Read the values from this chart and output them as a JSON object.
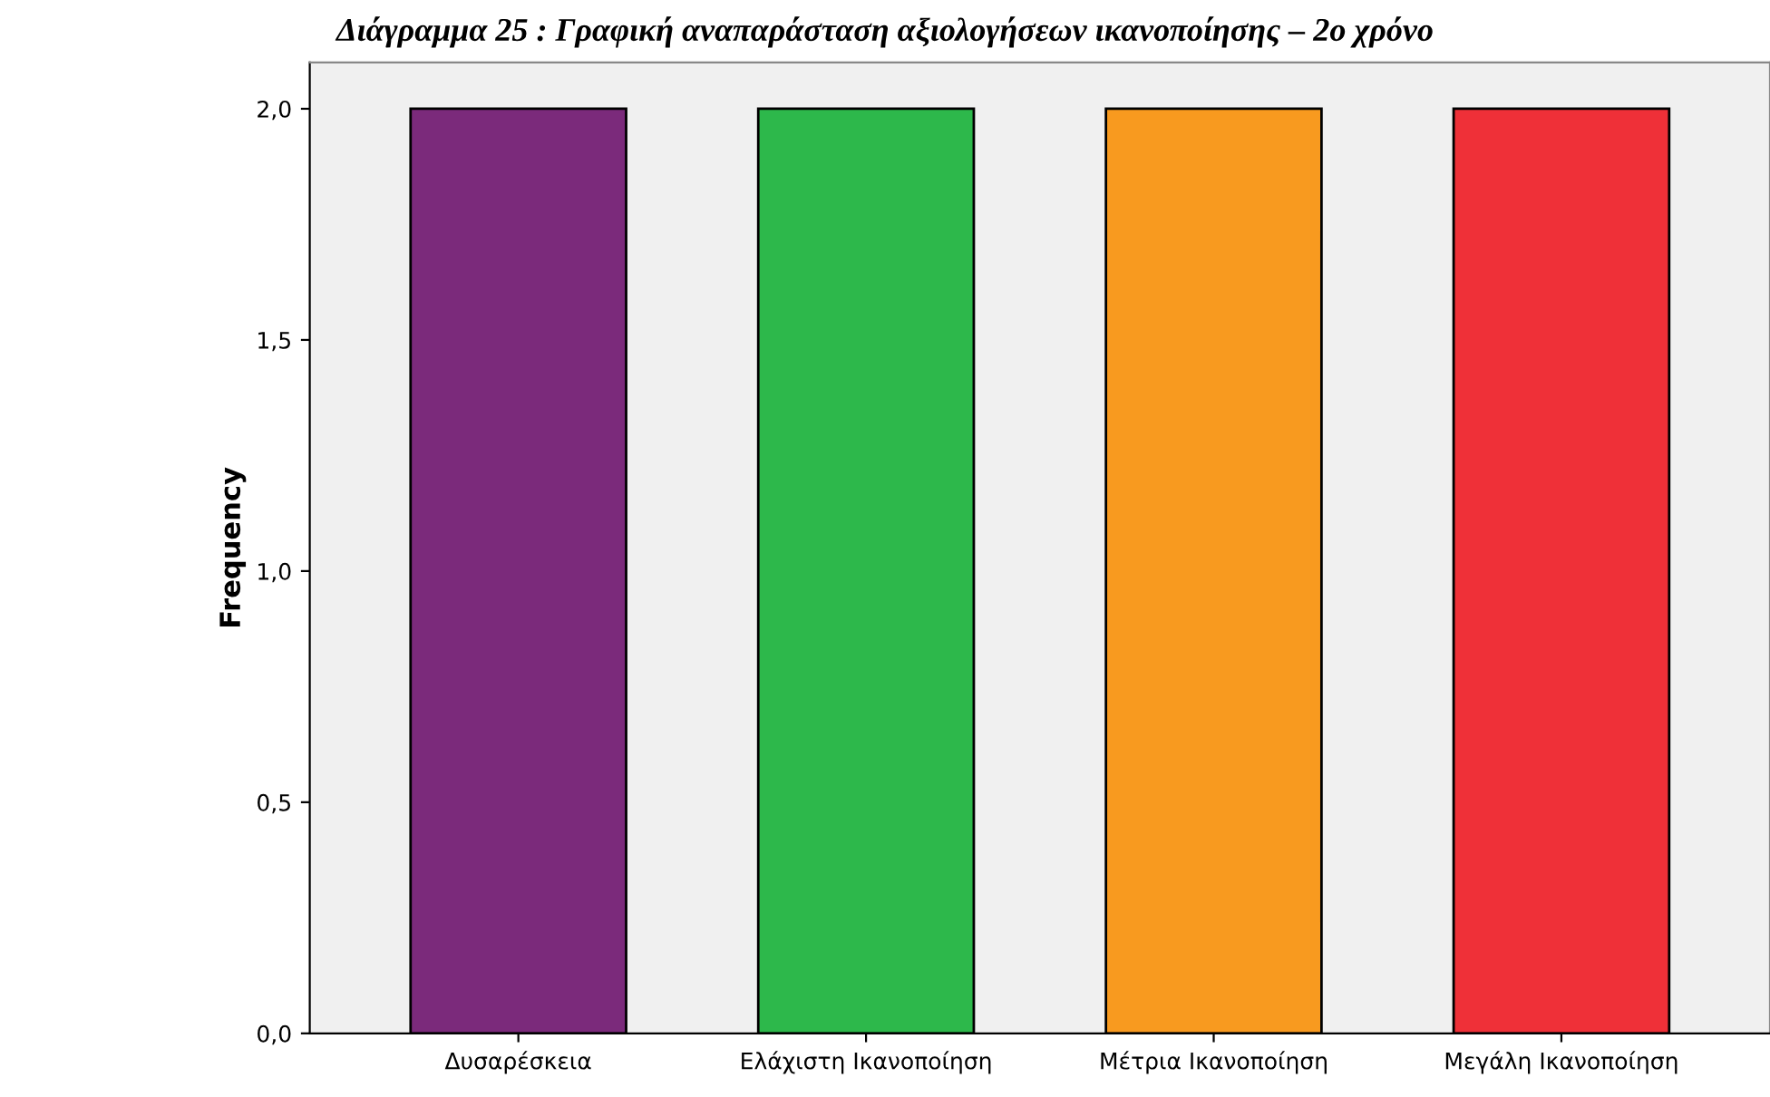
{
  "chart_data": {
    "type": "bar",
    "title": "Διάγραμμα 25 : Γραφική αναπαράσταση αξιολογήσεων ικανοποίησης – 2ο χρόνο",
    "ylabel": "Frequency",
    "categories": [
      "Δυσαρέσκεια",
      "Ελάχιστη Ικανοποίηση",
      "Μέτρια Ικανοποίηση",
      "Μεγάλη Ικανοποίηση"
    ],
    "values": [
      2,
      2,
      2,
      2
    ],
    "colors": [
      "#7b2a7b",
      "#2db84b",
      "#f89a1f",
      "#ef3038"
    ],
    "ylim": [
      0,
      2.1
    ],
    "yticks": [
      {
        "value": 0,
        "label": "0,0"
      },
      {
        "value": 0.5,
        "label": "0,5"
      },
      {
        "value": 1.0,
        "label": "1,0"
      },
      {
        "value": 1.5,
        "label": "1,5"
      },
      {
        "value": 2.0,
        "label": "2,0"
      }
    ],
    "grid": false,
    "legend": false
  }
}
